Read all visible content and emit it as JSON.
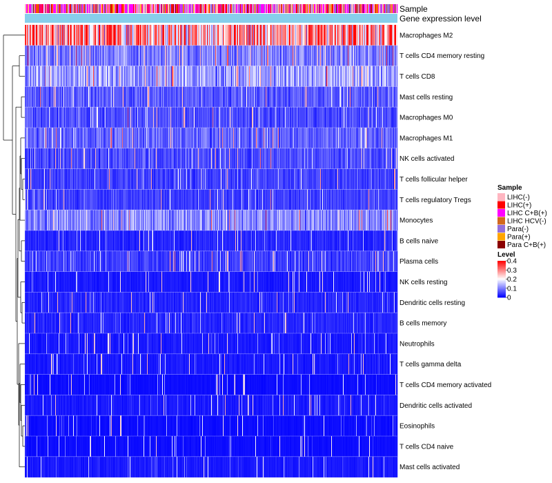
{
  "chart_data": {
    "type": "heatmap",
    "title": "",
    "annotation_rows": [
      "Sample",
      "Gene expression level"
    ],
    "rows": [
      "Macrophages M2",
      "T cells CD4 memory resting",
      "T cells CD8",
      "Mast cells resting",
      "Macrophages M0",
      "Macrophages M1",
      "NK cells activated",
      "T cells follicular helper",
      "T cells regulatory  Tregs",
      "Monocytes",
      "B cells naive",
      "Plasma cells",
      "NK cells resting",
      "Dendritic cells resting",
      "B cells memory",
      "Neutrophils",
      "T cells gamma delta",
      "T cells CD4 memory activated",
      "Dendritic cells activated",
      "Eosinophils",
      "T cells CD4 naive",
      "Mast cells activated"
    ],
    "row_mean_level_estimates": [
      0.28,
      0.1,
      0.13,
      0.07,
      0.06,
      0.08,
      0.06,
      0.05,
      0.05,
      0.11,
      0.03,
      0.05,
      0.02,
      0.03,
      0.03,
      0.02,
      0.02,
      0.01,
      0.02,
      0.01,
      0.01,
      0.02
    ],
    "n_columns_estimate": 540,
    "color_scale": {
      "title": "Level",
      "ticks": [
        "0",
        "0.1",
        "0.2",
        "0.3",
        "0.4"
      ],
      "min": 0,
      "max": 0.4,
      "colors": [
        "#0000ff",
        "#ffffff",
        "#ff0000"
      ]
    },
    "gene_expression_level_color": "#87ceeb",
    "sample_legend": {
      "title": "Sample",
      "items": [
        {
          "label": "LIHC(-)",
          "color": "#ffb6c1"
        },
        {
          "label": "LIHC(+)",
          "color": "#ff0000"
        },
        {
          "label": "LIHC C+B(+)",
          "color": "#ff00ff"
        },
        {
          "label": "LIHC HCV(-)",
          "color": "#d2691e"
        },
        {
          "label": "Para(-)",
          "color": "#9370db"
        },
        {
          "label": "Para(+)",
          "color": "#ffa500"
        },
        {
          "label": "Para C+B(+)",
          "color": "#8b0000"
        }
      ]
    }
  }
}
